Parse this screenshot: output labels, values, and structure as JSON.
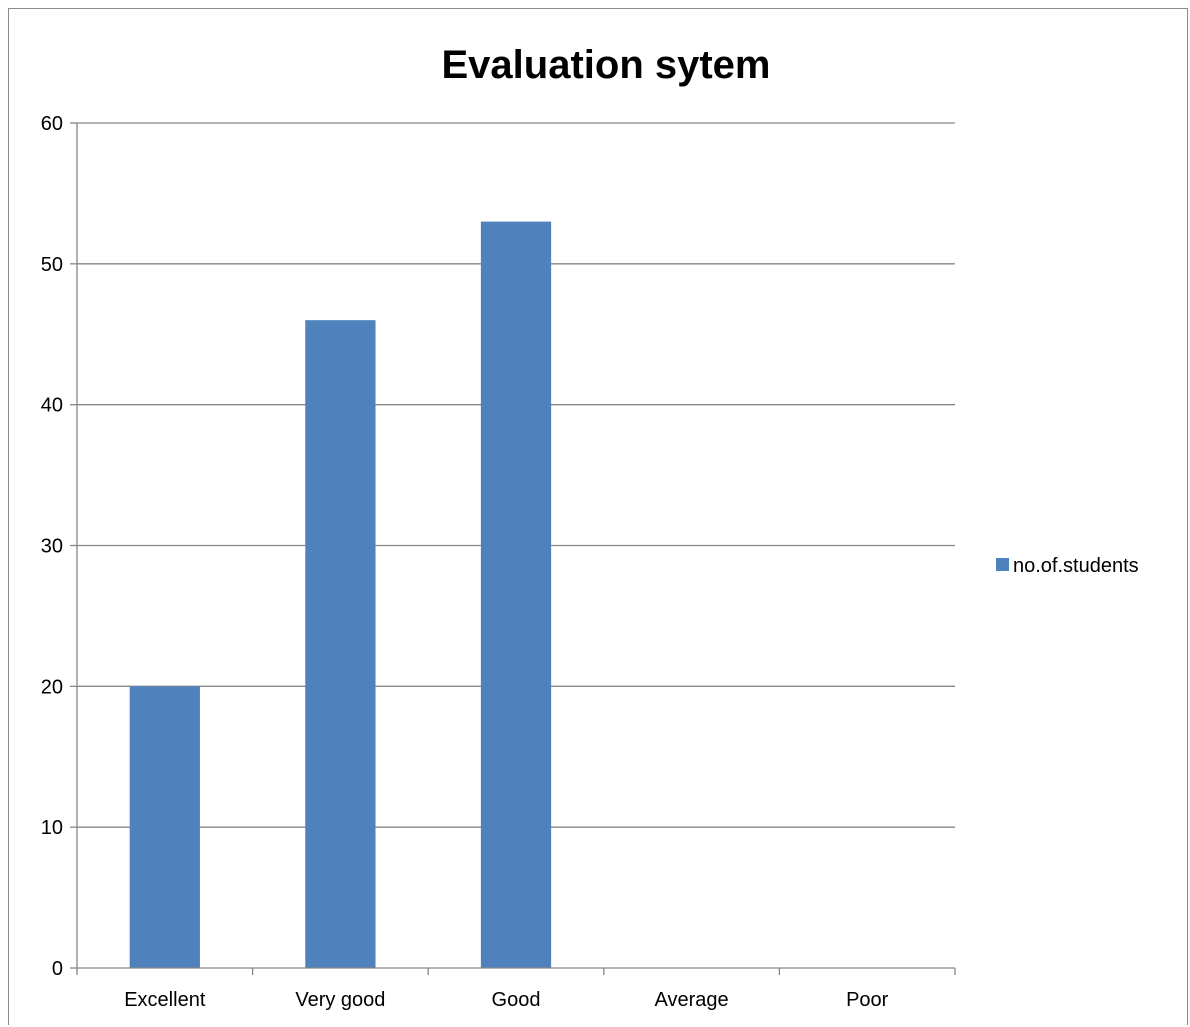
{
  "chart_data": {
    "type": "bar",
    "title": "Evaluation sytem",
    "xlabel": "",
    "ylabel": "",
    "categories": [
      "Excellent",
      "Very good",
      "Good",
      "Average",
      "Poor"
    ],
    "series": [
      {
        "name": "no.of.students",
        "values": [
          20,
          46,
          53,
          0,
          0
        ],
        "color": "#4f81bd"
      }
    ],
    "ylim": [
      0,
      60
    ],
    "yticks": [
      "0",
      "10",
      "20",
      "30",
      "40",
      "50",
      "60"
    ],
    "grid": true,
    "legend_position": "right",
    "gridline_color": "#868686"
  }
}
